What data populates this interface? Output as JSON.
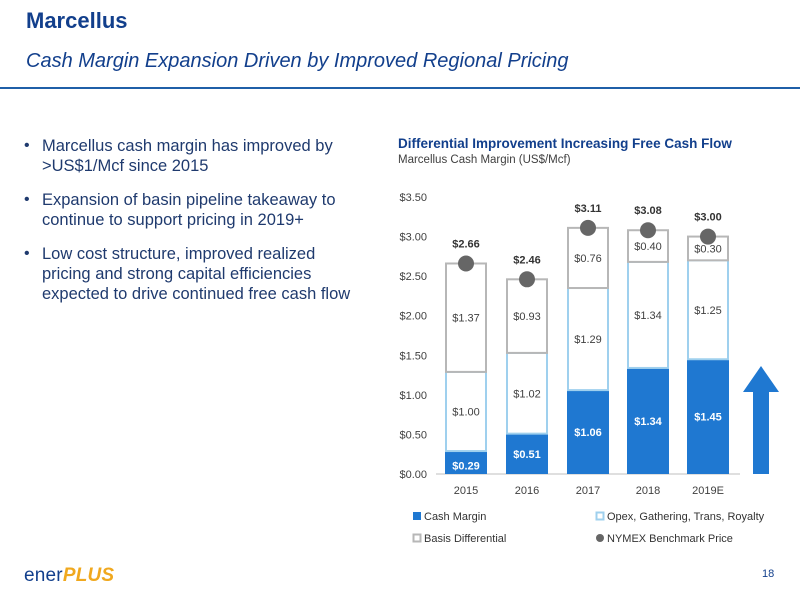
{
  "header": {
    "title": "Marcellus",
    "subtitle": "Cash Margin Expansion Driven by Improved Regional Pricing"
  },
  "bullets": [
    "Marcellus cash margin has improved by >US$1/Mcf since 2015",
    "Expansion of basin pipeline takeaway to continue to support pricing in 2019+",
    "Low cost structure, improved realized pricing and strong capital efficiencies expected to drive continued free cash flow"
  ],
  "chart_data": {
    "type": "bar",
    "stacked": true,
    "title": "Differential Improvement Increasing Free Cash Flow",
    "subtitle": "Marcellus Cash Margin (US$/Mcf)",
    "categories": [
      "2015",
      "2016",
      "2017",
      "2018",
      "2019E"
    ],
    "series": [
      {
        "name": "Cash Margin",
        "values": [
          0.29,
          0.51,
          1.06,
          1.34,
          1.45
        ],
        "labels": [
          "$0.29",
          "$0.51",
          "$1.06",
          "$1.34",
          "$1.45"
        ]
      },
      {
        "name": "Opex, Gathering, Trans, Royalty",
        "values": [
          1.0,
          1.02,
          1.29,
          1.34,
          1.25
        ],
        "labels": [
          "$1.00",
          "$1.02",
          "$1.29",
          "$1.34",
          "$1.25"
        ]
      },
      {
        "name": "Basis  Differential",
        "values": [
          1.37,
          0.93,
          0.76,
          0.4,
          0.3
        ],
        "labels": [
          "$1.37",
          "$0.93",
          "$0.76",
          "$0.40",
          "$0.30"
        ]
      },
      {
        "name": "NYMEX Benchmark Price",
        "type": "scatter",
        "values": [
          2.66,
          2.46,
          3.11,
          3.08,
          3.0
        ],
        "labels": [
          "$2.66",
          "$2.46",
          "$3.11",
          "$3.08",
          "$3.00"
        ]
      }
    ],
    "yticks": [
      "$0.00",
      "$0.50",
      "$1.00",
      "$1.50",
      "$2.00",
      "$2.50",
      "$3.00",
      "$3.50"
    ],
    "ylim": [
      0,
      3.5
    ],
    "grid": false,
    "legend_position": "bottom",
    "colors": {
      "cash_margin": "#1f78d1",
      "opex_border": "#9fd0ee",
      "basis_border": "#b7b7b7",
      "nymex": "#666666",
      "arrow": "#1f78d1"
    }
  },
  "footer": {
    "logo_part1": "ener",
    "logo_part2": "PLUS",
    "page_number": "18"
  }
}
